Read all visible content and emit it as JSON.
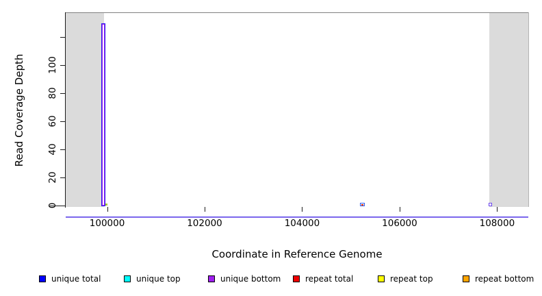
{
  "figure": {
    "xlabel": "Coordinate in Reference Genome",
    "ylabel": "Read Coverage Depth"
  },
  "legend": {
    "items": [
      {
        "label": "unique total",
        "color": "#0000FF"
      },
      {
        "label": "unique top",
        "color": "#00FFFF"
      },
      {
        "label": "unique bottom",
        "color": "#A020F0"
      },
      {
        "label": "repeat total",
        "color": "#EE0000"
      },
      {
        "label": "repeat top",
        "color": "#FFFF00"
      },
      {
        "label": "repeat bottom",
        "color": "#FFA500"
      }
    ]
  },
  "chart_data": {
    "type": "area",
    "title": "",
    "xlabel": "Coordinate in Reference Genome",
    "ylabel": "Read Coverage Depth",
    "xlim": [
      99150,
      108640
    ],
    "ylim": [
      0,
      138
    ],
    "x_ticks": [
      100000,
      102000,
      104000,
      106000,
      108000
    ],
    "x_tick_labels": [
      "100000",
      "102000",
      "104000",
      "106000",
      "108000"
    ],
    "y_ticks": [
      0,
      20,
      40,
      60,
      80,
      100,
      120
    ],
    "y_tick_labels": [
      "0",
      "20",
      "40",
      "60",
      "80",
      "100",
      ""
    ],
    "grid": false,
    "legend_position": "bottom",
    "shaded_regions": [
      {
        "x0": 99150,
        "x1": 99935,
        "color": "#dbdbdb"
      },
      {
        "x0": 107840,
        "x1": 108640,
        "color": "#dbdbdb"
      }
    ],
    "baseline": {
      "depth": 0.5,
      "colors": [
        "#5a4ae8",
        "#9b83f2"
      ]
    },
    "features": [
      {
        "kind": "spike",
        "x0": 99880,
        "x1": 99962,
        "depth": 130,
        "outer_color": "#2b1fef",
        "inner_color": "#a020f0"
      },
      {
        "kind": "bump",
        "x0": 105180,
        "x1": 105285,
        "depth": 2,
        "color": "#2e5bea",
        "accent_color": "#ff3300"
      },
      {
        "kind": "bump",
        "x0": 107825,
        "x1": 107892,
        "depth": 2,
        "color": "#6b45ee"
      },
      {
        "kind": "dot",
        "x0": 99962,
        "x1": 99992,
        "depth": 1,
        "color": "#a6c832"
      }
    ]
  }
}
